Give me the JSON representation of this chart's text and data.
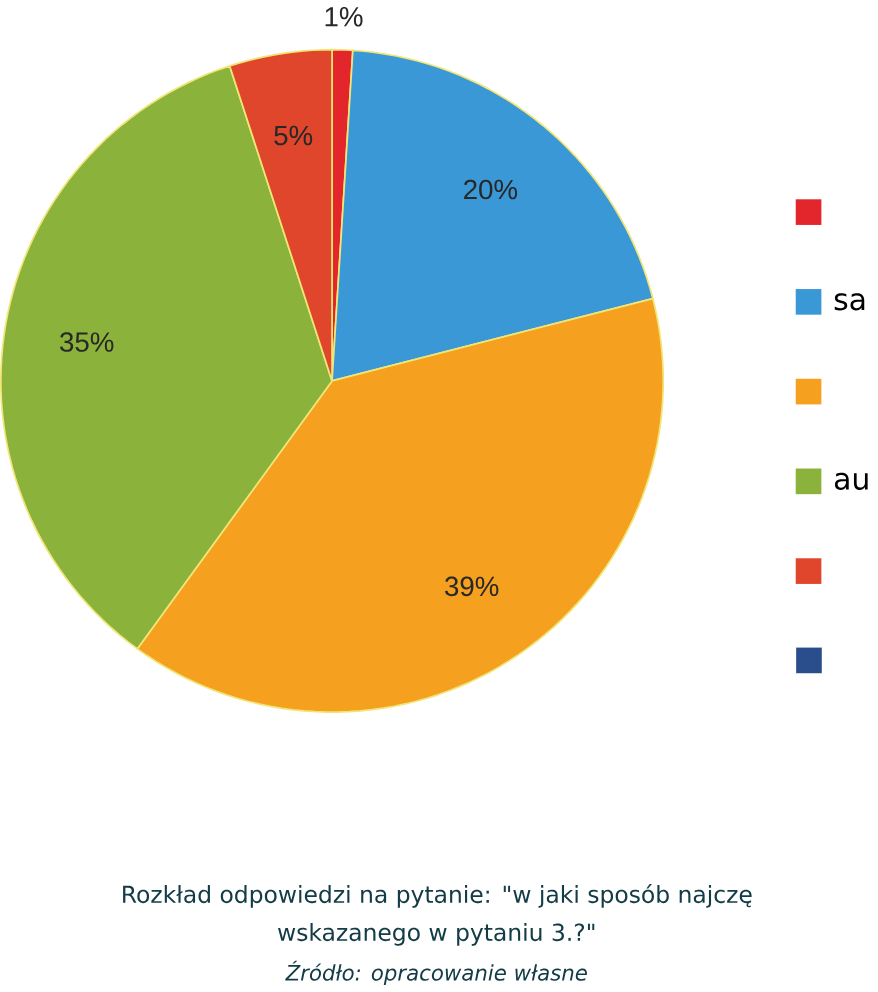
{
  "chart_data": {
    "type": "pie",
    "title": "Rozkład odpowiedzi na pytanie: \"w jaki sposób najczę",
    "subtitle": "wskazanego w pytaniu 3.?\"",
    "annotations": [
      "Źródło: opracowanie własne"
    ],
    "categories": [
      null,
      "sa",
      null,
      "au",
      null,
      null
    ],
    "values": [
      1,
      20,
      39,
      35,
      5,
      0
    ],
    "value_labels": [
      "1%",
      "20%",
      "39%",
      "35%",
      "5%",
      null
    ],
    "colors": [
      "#e3262b",
      "#3a98d6",
      "#f5a01f",
      "#8bb23a",
      "#e0462b",
      "#2a4d8c"
    ],
    "legend": "right"
  }
}
